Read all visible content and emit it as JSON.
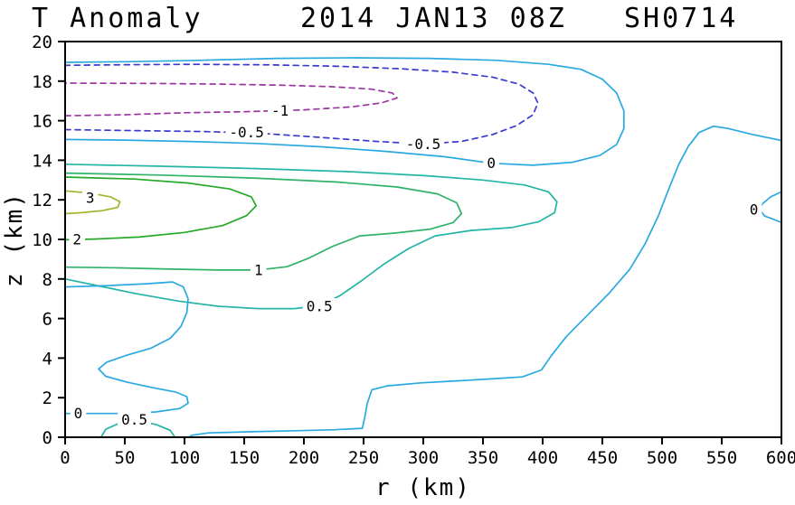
{
  "title": {
    "left": "T Anomaly",
    "datetime": "2014 JAN13 08Z",
    "storm_id": "SH0714"
  },
  "chart_data": {
    "type": "contour",
    "title": "T Anomaly 2014 JAN13 08Z SH0714",
    "xlabel": "r (km)",
    "ylabel": "z (km)",
    "xlim": [
      0,
      600
    ],
    "ylim": [
      0,
      20
    ],
    "xticks": [
      0,
      50,
      100,
      150,
      200,
      250,
      300,
      350,
      400,
      450,
      500,
      550,
      600
    ],
    "yticks": [
      0,
      2,
      4,
      6,
      8,
      10,
      12,
      14,
      16,
      18,
      20
    ],
    "grid": false,
    "levels": [
      -1,
      -0.5,
      0,
      0.5,
      1,
      2,
      3
    ],
    "style_note": "negative levels dashed, positive and zero levels solid",
    "contours": [
      {
        "level": "-1",
        "color": "#9b35a0",
        "style": "dashed",
        "points": [
          [
            0,
            16.25
          ],
          [
            50,
            16.3
          ],
          [
            100,
            16.4
          ],
          [
            150,
            16.45
          ],
          [
            200,
            16.55
          ],
          [
            240,
            16.7
          ],
          [
            265,
            16.9
          ],
          [
            278,
            17.15
          ],
          [
            274,
            17.4
          ],
          [
            256,
            17.6
          ],
          [
            222,
            17.72
          ],
          [
            178,
            17.8
          ],
          [
            128,
            17.85
          ],
          [
            78,
            17.88
          ],
          [
            0,
            17.9
          ]
        ],
        "labels": [
          {
            "text": "-1",
            "r": 180,
            "z": 16.5
          }
        ]
      },
      {
        "level": "-0.5",
        "color": "#3a3ace",
        "style": "dashed",
        "points": [
          [
            0,
            15.55
          ],
          [
            60,
            15.5
          ],
          [
            115,
            15.45
          ],
          [
            160,
            15.38
          ],
          [
            215,
            15.15
          ],
          [
            262,
            14.95
          ],
          [
            300,
            14.82
          ],
          [
            332,
            14.95
          ],
          [
            358,
            15.3
          ],
          [
            378,
            15.75
          ],
          [
            392,
            16.3
          ],
          [
            396,
            16.9
          ],
          [
            392,
            17.4
          ],
          [
            380,
            17.85
          ],
          [
            358,
            18.2
          ],
          [
            325,
            18.45
          ],
          [
            282,
            18.62
          ],
          [
            230,
            18.75
          ],
          [
            172,
            18.82
          ],
          [
            110,
            18.85
          ],
          [
            55,
            18.83
          ],
          [
            0,
            18.8
          ]
        ],
        "labels": [
          {
            "text": "-0.5",
            "r": 152,
            "z": 15.4
          },
          {
            "text": "-0.5",
            "r": 300,
            "z": 14.82
          }
        ]
      },
      {
        "level": "0",
        "color": "#2aa9e0",
        "style": "solid",
        "points": [
          [
            0,
            15.05
          ],
          [
            50,
            15.02
          ],
          [
            105,
            14.95
          ],
          [
            160,
            14.85
          ],
          [
            215,
            14.68
          ],
          [
            268,
            14.45
          ],
          [
            318,
            14.18
          ],
          [
            357,
            13.85
          ],
          [
            392,
            13.75
          ],
          [
            425,
            13.9
          ],
          [
            448,
            14.25
          ],
          [
            462,
            14.8
          ],
          [
            468,
            15.6
          ],
          [
            468,
            16.5
          ],
          [
            462,
            17.4
          ],
          [
            450,
            18.1
          ],
          [
            432,
            18.6
          ],
          [
            405,
            18.85
          ],
          [
            362,
            19.05
          ],
          [
            305,
            19.15
          ],
          [
            242,
            19.18
          ],
          [
            178,
            19.15
          ],
          [
            112,
            19.05
          ],
          [
            52,
            18.98
          ],
          [
            0,
            18.95
          ]
        ],
        "labels": [
          {
            "text": "0",
            "r": 357,
            "z": 13.85
          }
        ]
      },
      {
        "level": "0.5",
        "color": "#23b5a5",
        "style": "solid",
        "points": [
          [
            0,
            13.8
          ],
          [
            80,
            13.7
          ],
          [
            160,
            13.58
          ],
          [
            240,
            13.42
          ],
          [
            302,
            13.22
          ],
          [
            350,
            13.0
          ],
          [
            385,
            12.75
          ],
          [
            405,
            12.4
          ],
          [
            412,
            11.9
          ],
          [
            410,
            11.35
          ],
          [
            397,
            10.9
          ],
          [
            374,
            10.6
          ],
          [
            340,
            10.45
          ],
          [
            310,
            10.18
          ],
          [
            288,
            9.55
          ],
          [
            267,
            8.75
          ],
          [
            248,
            7.9
          ],
          [
            230,
            7.15
          ],
          [
            213,
            6.65
          ],
          [
            192,
            6.5
          ],
          [
            162,
            6.5
          ],
          [
            128,
            6.62
          ],
          [
            95,
            6.88
          ],
          [
            60,
            7.25
          ],
          [
            28,
            7.65
          ],
          [
            0,
            8.0
          ]
        ],
        "labels": [
          {
            "text": "0.5",
            "r": 213,
            "z": 6.62
          }
        ]
      },
      {
        "level": "1",
        "color": "#30b26b",
        "style": "solid",
        "points": [
          [
            0,
            13.35
          ],
          [
            80,
            13.25
          ],
          [
            158,
            13.1
          ],
          [
            228,
            12.9
          ],
          [
            278,
            12.65
          ],
          [
            312,
            12.3
          ],
          [
            328,
            11.85
          ],
          [
            332,
            11.3
          ],
          [
            325,
            10.85
          ],
          [
            306,
            10.52
          ],
          [
            276,
            10.32
          ],
          [
            247,
            10.18
          ],
          [
            224,
            9.65
          ],
          [
            204,
            9.05
          ],
          [
            186,
            8.62
          ],
          [
            162,
            8.45
          ],
          [
            128,
            8.45
          ],
          [
            88,
            8.5
          ],
          [
            45,
            8.56
          ],
          [
            0,
            8.6
          ]
        ],
        "labels": [
          {
            "text": "1",
            "r": 162,
            "z": 8.45
          }
        ]
      },
      {
        "level": "2",
        "color": "#28a828",
        "style": "solid",
        "points": [
          [
            0,
            13.15
          ],
          [
            58,
            13.05
          ],
          [
            103,
            12.85
          ],
          [
            138,
            12.55
          ],
          [
            156,
            12.15
          ],
          [
            160,
            11.7
          ],
          [
            152,
            11.2
          ],
          [
            132,
            10.7
          ],
          [
            100,
            10.35
          ],
          [
            62,
            10.12
          ],
          [
            25,
            10.02
          ],
          [
            0,
            9.98
          ]
        ],
        "labels": [
          {
            "text": "2",
            "r": 10,
            "z": 10.0
          }
        ]
      },
      {
        "level": "3",
        "color": "#a6b32c",
        "style": "solid",
        "points": [
          [
            0,
            12.45
          ],
          [
            20,
            12.35
          ],
          [
            38,
            12.15
          ],
          [
            46,
            11.9
          ],
          [
            44,
            11.62
          ],
          [
            31,
            11.45
          ],
          [
            14,
            11.35
          ],
          [
            0,
            11.3
          ]
        ],
        "labels": [
          {
            "text": "3",
            "r": 21,
            "z": 12.1
          }
        ]
      },
      {
        "level": "0",
        "color": "#2aa9e0",
        "style": "solid",
        "points": [
          [
            600,
            15.0
          ],
          [
            576,
            15.3
          ],
          [
            556,
            15.6
          ],
          [
            543,
            15.72
          ],
          [
            531,
            15.4
          ],
          [
            522,
            14.7
          ],
          [
            514,
            13.8
          ],
          [
            506,
            12.6
          ],
          [
            497,
            11.2
          ],
          [
            486,
            9.8
          ],
          [
            473,
            8.5
          ],
          [
            456,
            7.3
          ],
          [
            438,
            6.2
          ],
          [
            420,
            5.1
          ],
          [
            407,
            4.1
          ],
          [
            399,
            3.4
          ],
          [
            383,
            3.05
          ],
          [
            357,
            2.95
          ],
          [
            328,
            2.85
          ],
          [
            298,
            2.75
          ],
          [
            270,
            2.6
          ],
          [
            257,
            2.4
          ],
          [
            253,
            1.7
          ],
          [
            251,
            1.0
          ],
          [
            249,
            0.45
          ],
          [
            226,
            0.38
          ],
          [
            192,
            0.33
          ],
          [
            156,
            0.28
          ],
          [
            120,
            0.22
          ],
          [
            106,
            0.1
          ],
          [
            104,
            0
          ]
        ],
        "labels": []
      },
      {
        "level": "0",
        "color": "#2aa9e0",
        "style": "solid",
        "points": [
          [
            600,
            12.4
          ],
          [
            591,
            12.15
          ],
          [
            584,
            11.8
          ],
          [
            582,
            11.5
          ],
          [
            586,
            11.18
          ],
          [
            594,
            11.0
          ],
          [
            600,
            10.85
          ]
        ],
        "labels": [
          {
            "text": "0",
            "r": 577,
            "z": 11.5
          }
        ]
      },
      {
        "level": "0",
        "color": "#2aa9e0",
        "style": "solid",
        "points": [
          [
            0,
            7.6
          ],
          [
            35,
            7.66
          ],
          [
            68,
            7.76
          ],
          [
            90,
            7.85
          ],
          [
            99,
            7.6
          ],
          [
            103,
            7.0
          ],
          [
            102,
            6.3
          ],
          [
            97,
            5.6
          ],
          [
            88,
            5.0
          ],
          [
            72,
            4.5
          ],
          [
            52,
            4.15
          ],
          [
            35,
            3.8
          ],
          [
            28,
            3.45
          ],
          [
            34,
            3.08
          ],
          [
            52,
            2.78
          ],
          [
            74,
            2.5
          ],
          [
            93,
            2.28
          ],
          [
            102,
            2.05
          ],
          [
            103,
            1.72
          ],
          [
            96,
            1.45
          ],
          [
            76,
            1.28
          ],
          [
            50,
            1.2
          ],
          [
            25,
            1.2
          ],
          [
            0,
            1.2
          ]
        ],
        "labels": [
          {
            "text": "0",
            "r": 11,
            "z": 1.2
          }
        ]
      },
      {
        "level": "0.5",
        "color": "#23b5a5",
        "style": "solid",
        "points": [
          [
            30,
            0
          ],
          [
            34,
            0.4
          ],
          [
            45,
            0.7
          ],
          [
            60,
            0.82
          ],
          [
            76,
            0.65
          ],
          [
            88,
            0.35
          ],
          [
            92,
            0
          ]
        ],
        "labels": [
          {
            "text": "0.5",
            "r": 58,
            "z": 0.9
          }
        ]
      }
    ]
  }
}
